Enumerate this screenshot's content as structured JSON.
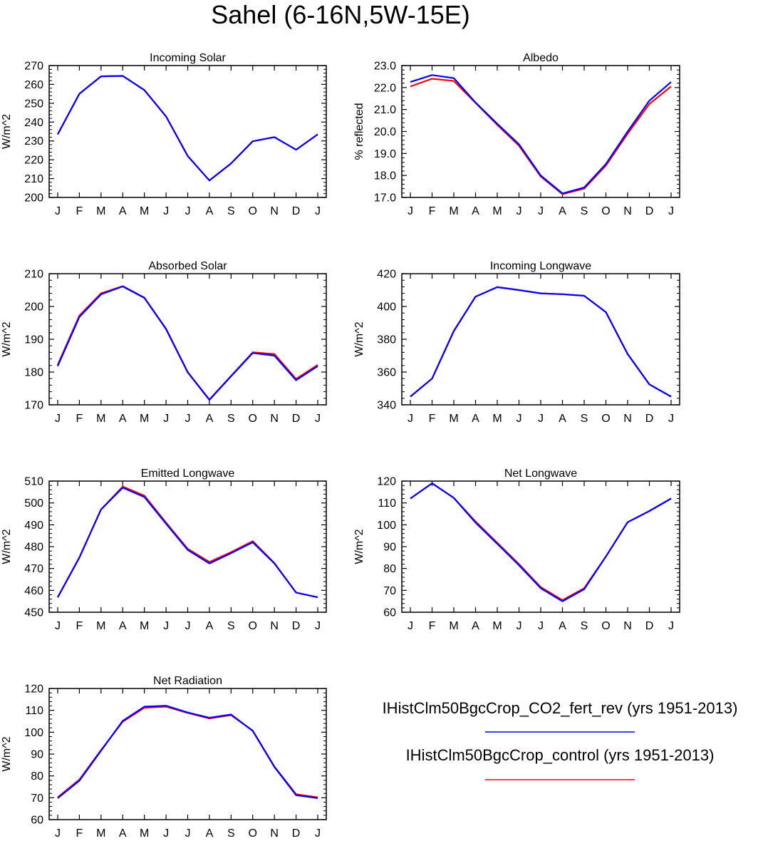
{
  "figure": {
    "title": "Sahel (6-16N,5W-15E)",
    "legend": [
      {
        "label": "IHistClm50BgcCrop_CO2_fert_rev (yrs 1951-2013)",
        "color": "#0000ff"
      },
      {
        "label": "IHistClm50BgcCrop_control (yrs 1951-2013)",
        "color": "#ff0000"
      }
    ]
  },
  "chart_data": [
    {
      "type": "line",
      "title": "Incoming Solar",
      "ylabel": "W/m^2",
      "ylim": [
        200,
        270
      ],
      "yticks": [
        200,
        210,
        220,
        230,
        240,
        250,
        260,
        270
      ],
      "ytick_labels": [
        "200",
        "210",
        "220",
        "230",
        "240",
        "250",
        "260",
        "270"
      ],
      "categories": [
        "J",
        "F",
        "M",
        "A",
        "M",
        "J",
        "J",
        "A",
        "S",
        "O",
        "N",
        "D",
        "J"
      ],
      "series": [
        {
          "color": "#ff0000",
          "values": [
            233.5,
            255,
            264.3,
            264.5,
            257,
            243,
            222,
            209,
            218,
            229.8,
            232,
            225.3,
            233.5
          ]
        },
        {
          "color": "#0000ff",
          "values": [
            233.5,
            255,
            264.3,
            264.5,
            257,
            243,
            222,
            209,
            218,
            229.8,
            232,
            225.3,
            233.5
          ]
        }
      ]
    },
    {
      "type": "line",
      "title": "Albedo",
      "ylabel": "% reflected",
      "ylim": [
        17,
        23
      ],
      "yticks": [
        17,
        18,
        19,
        20,
        21,
        22,
        23
      ],
      "ytick_labels": [
        "17.0",
        "18.0",
        "19.0",
        "20.0",
        "21.0",
        "22.0",
        "23.0"
      ],
      "categories": [
        "J",
        "F",
        "M",
        "A",
        "M",
        "J",
        "J",
        "A",
        "S",
        "O",
        "N",
        "D",
        "J"
      ],
      "series": [
        {
          "color": "#ff0000",
          "values": [
            22.05,
            22.4,
            22.3,
            21.3,
            20.3,
            19.35,
            17.95,
            17.15,
            17.4,
            18.45,
            19.9,
            21.25,
            22.05
          ]
        },
        {
          "color": "#0000ff",
          "values": [
            22.25,
            22.57,
            22.43,
            21.32,
            20.35,
            19.42,
            18.0,
            17.18,
            17.45,
            18.52,
            20.0,
            21.4,
            22.25
          ]
        }
      ]
    },
    {
      "type": "line",
      "title": "Absorbed Solar",
      "ylabel": "W/m^2",
      "ylim": [
        170,
        210
      ],
      "yticks": [
        170,
        180,
        190,
        200,
        210
      ],
      "ytick_labels": [
        "170",
        "180",
        "190",
        "200",
        "210"
      ],
      "categories": [
        "J",
        "F",
        "M",
        "A",
        "M",
        "J",
        "J",
        "A",
        "S",
        "O",
        "N",
        "D",
        "J"
      ],
      "series": [
        {
          "color": "#ff0000",
          "values": [
            182.2,
            197.2,
            204,
            206.2,
            202.7,
            193.2,
            180,
            171.6,
            178.8,
            186,
            185.5,
            177.9,
            182.2
          ]
        },
        {
          "color": "#0000ff",
          "values": [
            181.8,
            196.8,
            203.7,
            206.1,
            202.6,
            193.1,
            179.9,
            171.5,
            178.7,
            185.8,
            185,
            177.5,
            181.8
          ]
        }
      ]
    },
    {
      "type": "line",
      "title": "Incoming Longwave",
      "ylabel": "W/m^2",
      "ylim": [
        340,
        420
      ],
      "yticks": [
        340,
        360,
        380,
        400,
        420
      ],
      "ytick_labels": [
        "340",
        "360",
        "380",
        "400",
        "420"
      ],
      "categories": [
        "J",
        "F",
        "M",
        "A",
        "M",
        "J",
        "J",
        "A",
        "S",
        "O",
        "N",
        "D",
        "J"
      ],
      "series": [
        {
          "color": "#ff0000",
          "values": [
            345,
            356,
            385,
            406,
            411.8,
            410,
            408,
            407.5,
            406.5,
            396.5,
            371,
            352.5,
            345
          ]
        },
        {
          "color": "#0000ff",
          "values": [
            345,
            356,
            385,
            406,
            411.8,
            410,
            408,
            407.5,
            406.5,
            396.5,
            371,
            352.5,
            345
          ]
        }
      ]
    },
    {
      "type": "line",
      "title": "Emitted Longwave",
      "ylabel": "W/m^2",
      "ylim": [
        450,
        510
      ],
      "yticks": [
        450,
        460,
        470,
        480,
        490,
        500,
        510
      ],
      "ytick_labels": [
        "450",
        "460",
        "470",
        "480",
        "490",
        "500",
        "510"
      ],
      "categories": [
        "J",
        "F",
        "M",
        "A",
        "M",
        "J",
        "J",
        "A",
        "S",
        "O",
        "N",
        "D",
        "J"
      ],
      "series": [
        {
          "color": "#ff0000",
          "values": [
            456.8,
            475,
            497,
            507.5,
            503.3,
            491,
            479,
            473,
            477.5,
            482.5,
            472.5,
            459,
            456.8
          ]
        },
        {
          "color": "#0000ff",
          "values": [
            456.8,
            475,
            497,
            507,
            502.7,
            490.5,
            478.5,
            472.3,
            477,
            482,
            472.3,
            459,
            456.8
          ]
        }
      ]
    },
    {
      "type": "line",
      "title": "Net Longwave",
      "ylabel": "W/m^2",
      "ylim": [
        60,
        120
      ],
      "yticks": [
        60,
        70,
        80,
        90,
        100,
        110,
        120
      ],
      "ytick_labels": [
        "60",
        "70",
        "80",
        "90",
        "100",
        "110",
        "120"
      ],
      "categories": [
        "J",
        "F",
        "M",
        "A",
        "M",
        "J",
        "J",
        "A",
        "S",
        "O",
        "N",
        "D",
        "J"
      ],
      "series": [
        {
          "color": "#ff0000",
          "values": [
            112,
            119,
            112.3,
            101.5,
            91.8,
            82,
            71.5,
            65.5,
            71,
            85.5,
            101.2,
            106.3,
            112
          ]
        },
        {
          "color": "#0000ff",
          "values": [
            112,
            119,
            112.3,
            101,
            91.3,
            81.5,
            71,
            65,
            70.5,
            85.5,
            101.2,
            106.3,
            112
          ]
        }
      ]
    },
    {
      "type": "line",
      "title": "Net Radiation",
      "ylabel": "W/m^2",
      "ylim": [
        60,
        120
      ],
      "yticks": [
        60,
        70,
        80,
        90,
        100,
        110,
        120
      ],
      "ytick_labels": [
        "60",
        "70",
        "80",
        "90",
        "100",
        "110",
        "120"
      ],
      "categories": [
        "J",
        "F",
        "M",
        "A",
        "M",
        "J",
        "J",
        "A",
        "S",
        "O",
        "N",
        "D",
        "J"
      ],
      "series": [
        {
          "color": "#ff0000",
          "values": [
            70.2,
            78.3,
            91.8,
            104.8,
            111.2,
            111.7,
            108.8,
            106.3,
            107.8,
            100.7,
            84.3,
            71.6,
            70.2
          ]
        },
        {
          "color": "#0000ff",
          "values": [
            69.8,
            77.8,
            91.5,
            105.2,
            111.7,
            112.1,
            109,
            106.6,
            108.1,
            100.6,
            84.1,
            71.2,
            69.8
          ]
        }
      ]
    }
  ]
}
